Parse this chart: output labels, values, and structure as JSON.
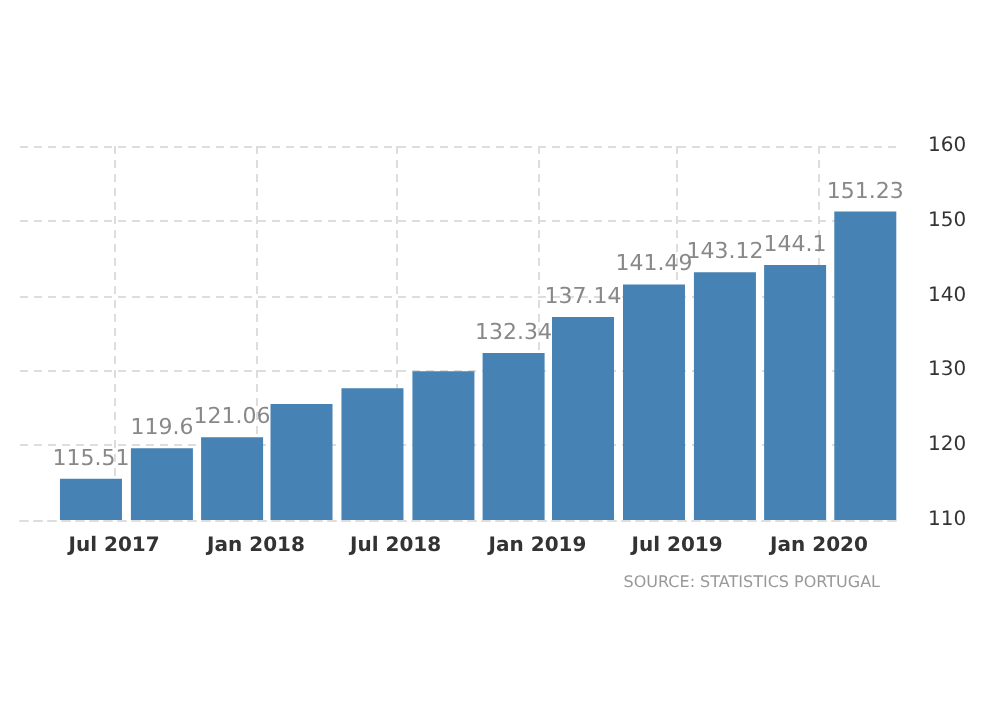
{
  "chart_data": {
    "type": "bar",
    "x": [
      "2017-06",
      "2017-09",
      "2017-12",
      "2018-03",
      "2018-06",
      "2018-09",
      "2018-12",
      "2019-03",
      "2019-06",
      "2019-09",
      "2019-12",
      "2020-03"
    ],
    "values": [
      115.51,
      119.6,
      121.06,
      125.5,
      127.6,
      129.9,
      132.34,
      137.14,
      141.49,
      143.12,
      144.1,
      151.23
    ],
    "value_labels": [
      "115.51",
      "119.6",
      "121.06",
      null,
      null,
      null,
      "132.34",
      "137.14",
      "141.49",
      "143.12",
      "144.1",
      "151.23"
    ],
    "color": "#4682b4",
    "xlim": [
      "2017-03-01",
      "2020-04-15"
    ],
    "xticks": [
      {
        "value": "2017-07",
        "label": "Jul 2017"
      },
      {
        "value": "2018-01",
        "label": "Jan 2018"
      },
      {
        "value": "2018-07",
        "label": "Jul 2018"
      },
      {
        "value": "2019-01",
        "label": "Jan 2019"
      },
      {
        "value": "2019-07",
        "label": "Jul 2019"
      },
      {
        "value": "2020-01",
        "label": "Jan 2020"
      }
    ],
    "ylim": [
      110,
      160
    ],
    "yticks": [
      110,
      120,
      130,
      140,
      150,
      160
    ],
    "grid": true,
    "annotations": [
      "SOURCE: STATISTICS PORTUGAL"
    ]
  }
}
